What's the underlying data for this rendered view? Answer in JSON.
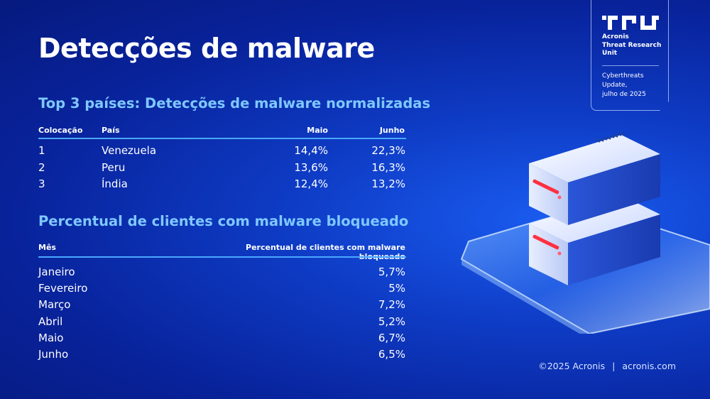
{
  "title": "Detecções de malware",
  "badge": {
    "org": [
      "Acronis",
      "Threat Research",
      "Unit"
    ],
    "note": [
      "Cyberthreats",
      "Update,",
      "julho de 2025"
    ]
  },
  "table1": {
    "title": "Top 3 países: Detecções de malware normalizadas",
    "headers": {
      "rank": "Colocação",
      "country": "País",
      "may": "Maio",
      "june": "Junho"
    },
    "rows": [
      {
        "rank": "1",
        "country": "Venezuela",
        "may": "14,4%",
        "june": "22,3%"
      },
      {
        "rank": "2",
        "country": "Peru",
        "may": "13,6%",
        "june": "16,3%"
      },
      {
        "rank": "3",
        "country": "Índia",
        "may": "12,4%",
        "june": "13,2%"
      }
    ]
  },
  "table2": {
    "title": "Percentual de clientes com malware bloqueado",
    "headers": {
      "month": "Mês",
      "pct": "Percentual de clientes com malware bloqueado"
    },
    "rows": [
      {
        "month": "Janeiro",
        "pct": "5,7%"
      },
      {
        "month": "Fevereiro",
        "pct": "5%"
      },
      {
        "month": "Março",
        "pct": "7,2%"
      },
      {
        "month": "Abril",
        "pct": "5,2%"
      },
      {
        "month": "Maio",
        "pct": "6,7%"
      },
      {
        "month": "Junho",
        "pct": "6,5%"
      }
    ]
  },
  "footer": {
    "copyright": "©2025 Acronis",
    "separator": "|",
    "site": "acronis.com"
  },
  "colors": {
    "accent": "#7fc8ff",
    "rule": "#4aa8ff",
    "background": "#0e3bc4",
    "server_light": "#ff3040"
  }
}
